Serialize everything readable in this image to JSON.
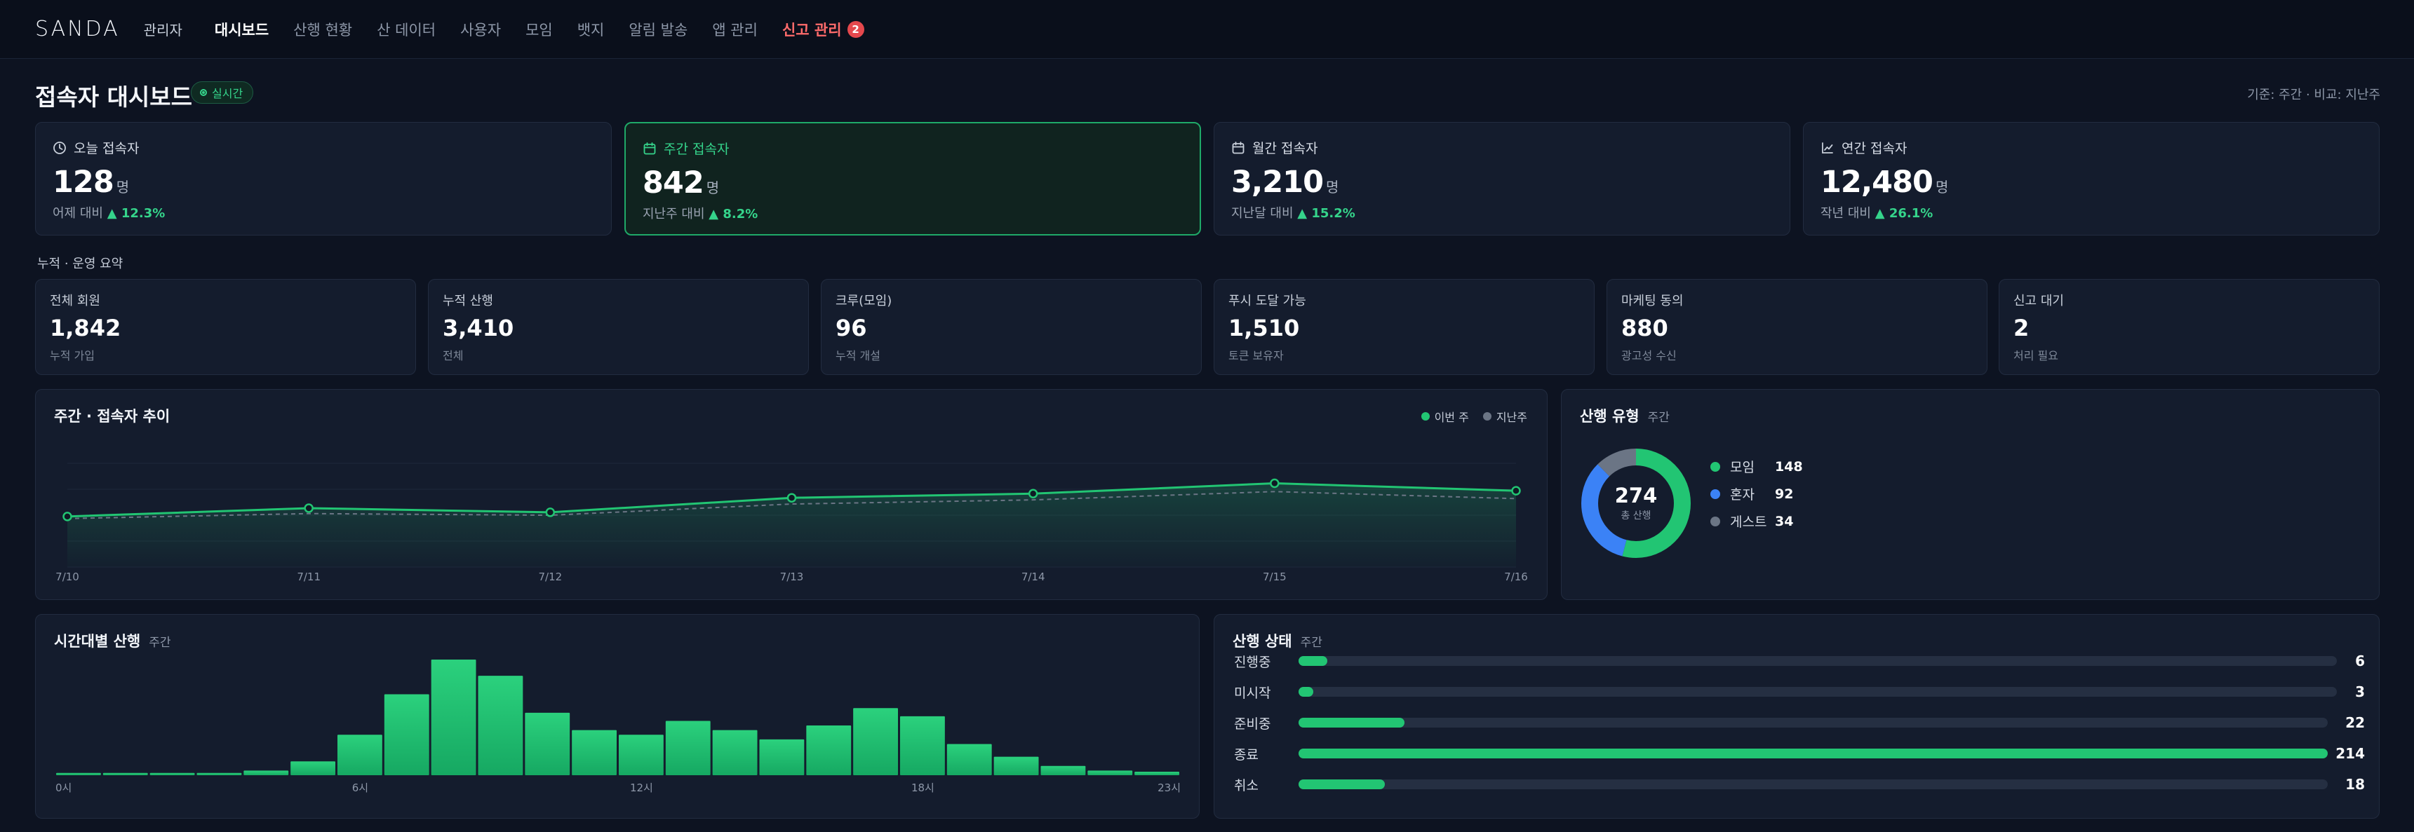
{
  "nav": {
    "brand": "SANDA",
    "brand_sub": "관리자",
    "items": [
      {
        "label": "대시보드",
        "active": true
      },
      {
        "label": "산행 현황"
      },
      {
        "label": "산 데이터"
      },
      {
        "label": "사용자"
      },
      {
        "label": "모임"
      },
      {
        "label": "뱃지"
      },
      {
        "label": "알림 발송"
      },
      {
        "label": "앱 관리"
      }
    ],
    "alert_item": {
      "label": "신고 관리",
      "badge": "2"
    }
  },
  "header": {
    "title": "접속자 대시보드",
    "live_label": "실시간",
    "basis": "기준: 주간 · 비교: 지난주"
  },
  "visitor_cards": [
    {
      "icon": "clock-icon",
      "label": "오늘 접속자",
      "value": "128",
      "unit": "명",
      "compare_label": "어제 대비",
      "change": "▲ 12.3%",
      "highlight": false
    },
    {
      "icon": "calendar-icon",
      "label": "주간 접속자",
      "value": "842",
      "unit": "명",
      "compare_label": "지난주 대비",
      "change": "▲ 8.2%",
      "highlight": true
    },
    {
      "icon": "calendar-icon",
      "label": "월간 접속자",
      "value": "3,210",
      "unit": "명",
      "compare_label": "지난달 대비",
      "change": "▲ 15.2%",
      "highlight": false
    },
    {
      "icon": "chart-line-icon",
      "label": "연간 접속자",
      "value": "12,480",
      "unit": "명",
      "compare_label": "작년 대비",
      "change": "▲ 26.1%",
      "highlight": false
    }
  ],
  "summary": {
    "section_label": "누적 · 운영 요약",
    "cards": [
      {
        "label": "전체 회원",
        "value": "1,842",
        "sub": "누적 가입"
      },
      {
        "label": "누적 산행",
        "value": "3,410",
        "sub": "전체"
      },
      {
        "label": "크루(모임)",
        "value": "96",
        "sub": "누적 개설"
      },
      {
        "label": "푸시 도달 가능",
        "value": "1,510",
        "sub": "토큰 보유자"
      },
      {
        "label": "마케팅 동의",
        "value": "880",
        "sub": "광고성 수신"
      },
      {
        "label": "신고 대기",
        "value": "2",
        "sub": "처리 필요"
      }
    ]
  },
  "trend_panel": {
    "title": "주간 · 접속자 추이"
  },
  "type_panel": {
    "title": "산행 유형",
    "sub": "주간",
    "center_value": "274",
    "center_label": "총 산행"
  },
  "hourly_panel": {
    "title": "시간대별 산행",
    "sub": "주간"
  },
  "status_panel": {
    "title": "산행 상태",
    "sub": "주간",
    "rows": [
      {
        "label": "진행중",
        "value": "6",
        "fraction": 0.028
      },
      {
        "label": "미시작",
        "value": "3",
        "fraction": 0.014
      },
      {
        "label": "준비중",
        "value": "22",
        "fraction": 0.103
      },
      {
        "label": "종료",
        "value": "214",
        "fraction": 1.0
      },
      {
        "label": "취소",
        "value": "18",
        "fraction": 0.084
      }
    ]
  },
  "chart_data": [
    {
      "type": "area",
      "title": "주간 · 접속자 추이",
      "categories": [
        "7/10",
        "7/11",
        "7/12",
        "7/13",
        "7/14",
        "7/15",
        "7/16"
      ],
      "series": [
        {
          "name": "이번 주",
          "color": "#22c573",
          "values": [
            105,
            125,
            115,
            150,
            160,
            185,
            167
          ]
        },
        {
          "name": "지난주",
          "color": "#6b7585",
          "values": [
            100,
            112,
            108,
            135,
            145,
            165,
            148
          ]
        }
      ],
      "ylim": [
        0,
        250
      ],
      "grid": true,
      "legend": "top-right"
    },
    {
      "type": "pie",
      "title": "산행 유형",
      "labels": [
        "모임",
        "혼자",
        "게스트"
      ],
      "values": [
        148,
        92,
        34
      ],
      "colors": [
        "#22c573",
        "#3b82f6",
        "#6b7585"
      ]
    },
    {
      "type": "bar",
      "title": "시간대별 산행",
      "categories": [
        "0시",
        "1",
        "2",
        "3",
        "4",
        "5",
        "6시",
        "7",
        "8",
        "9",
        "10",
        "11",
        "12시",
        "13",
        "14",
        "15",
        "16",
        "17",
        "18시",
        "19",
        "20",
        "21",
        "22",
        "23시"
      ],
      "tick_labels": [
        "0시",
        "6시",
        "12시",
        "18시",
        "23시"
      ],
      "values": [
        2,
        2,
        2,
        2,
        4,
        12,
        35,
        70,
        100,
        86,
        54,
        39,
        35,
        47,
        39,
        31,
        43,
        58,
        51,
        27,
        16,
        8,
        4,
        3
      ],
      "ylim": [
        0,
        100
      ]
    },
    {
      "type": "bar",
      "title": "산행 상태",
      "categories": [
        "진행중",
        "미시작",
        "준비중",
        "종료",
        "취소"
      ],
      "values": [
        6,
        3,
        22,
        214,
        18
      ]
    }
  ]
}
